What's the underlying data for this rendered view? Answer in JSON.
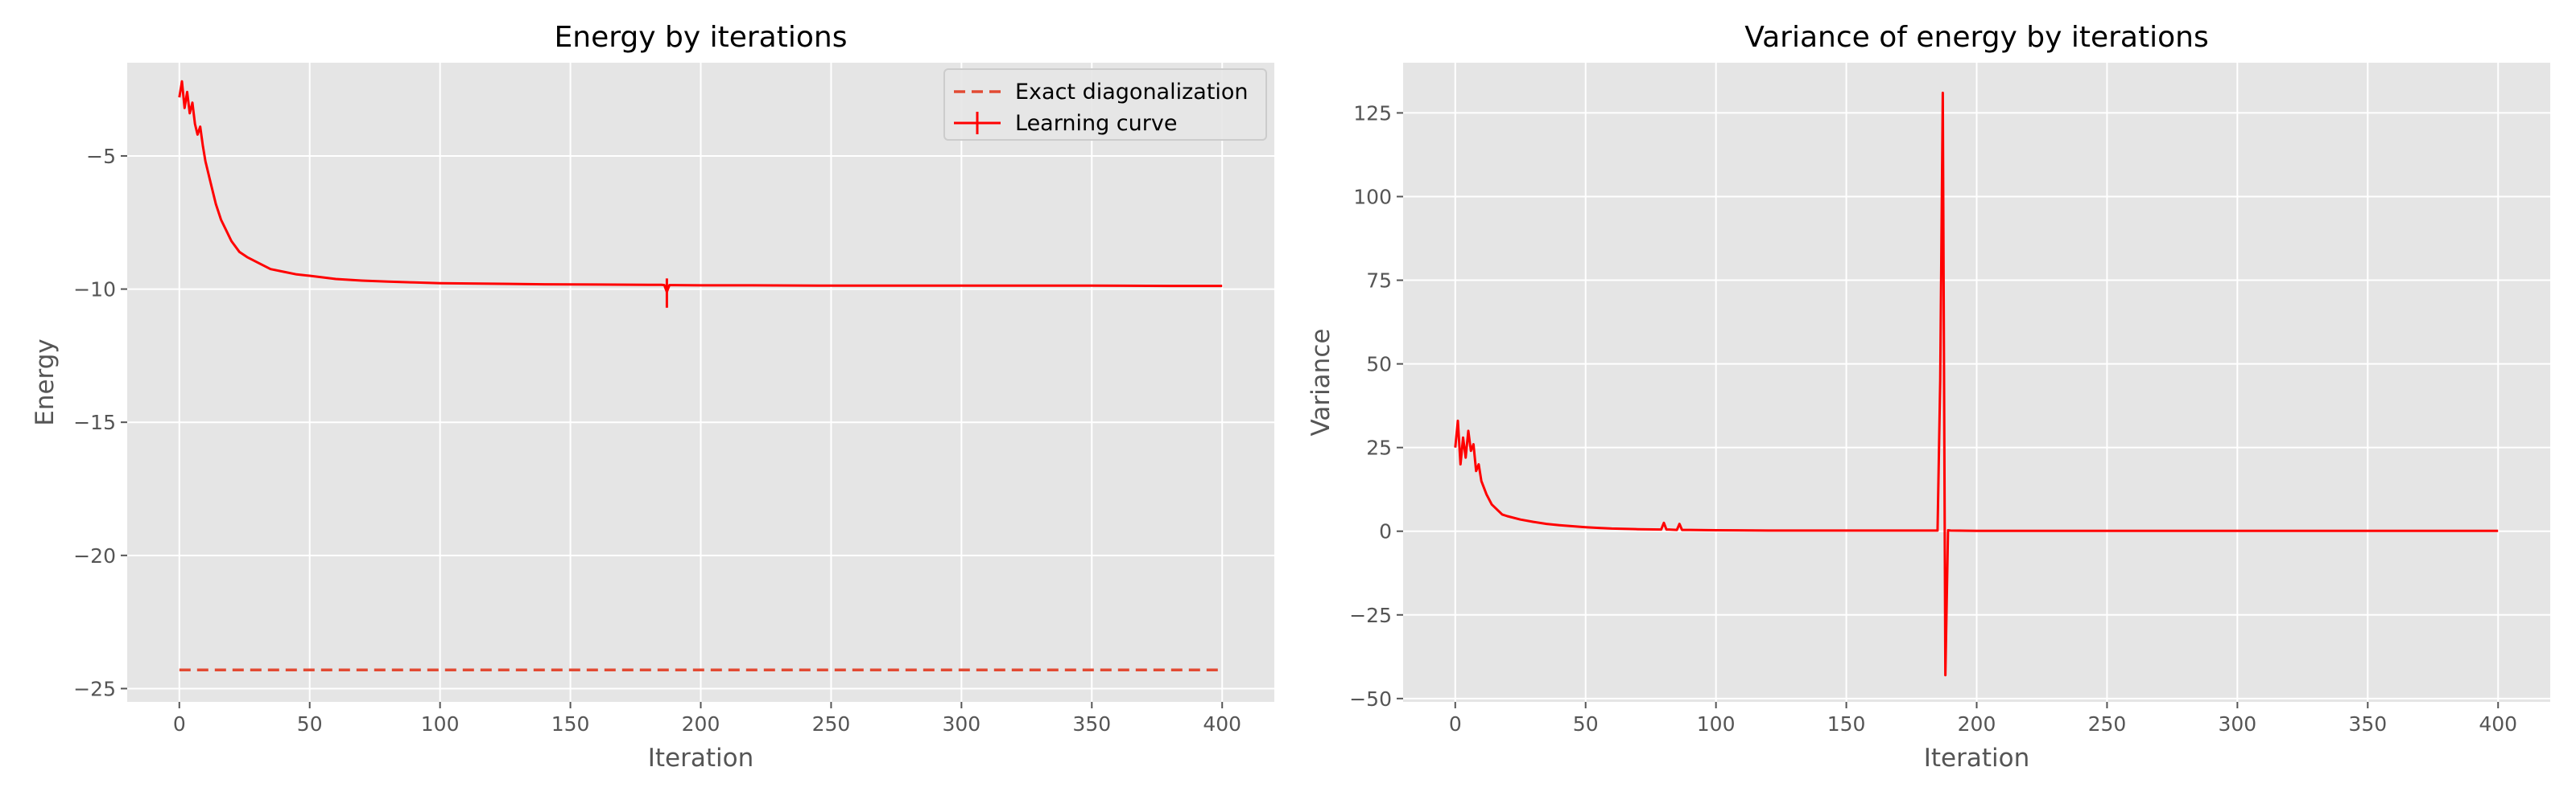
{
  "colors": {
    "axes_bg": "#E5E5E5",
    "grid": "#FFFFFF",
    "tick_text": "#555555",
    "label_text": "#555555",
    "title_text": "#000000",
    "line": "#FF0000",
    "dashed": "#E24A33"
  },
  "chart_data": [
    {
      "type": "line",
      "title": "Energy by iterations",
      "xlabel": "Iteration",
      "ylabel": "Energy",
      "xlim": [
        -20,
        420
      ],
      "ylim": [
        -25.5,
        -1.5
      ],
      "xticks": [
        0,
        50,
        100,
        150,
        200,
        250,
        300,
        350,
        400
      ],
      "yticks": [
        -25,
        -20,
        -15,
        -10,
        -5
      ],
      "xtick_labels": [
        "0",
        "50",
        "100",
        "150",
        "200",
        "250",
        "300",
        "350",
        "400"
      ],
      "ytick_labels": [
        "−25",
        "−20",
        "−15",
        "−10",
        "−5"
      ],
      "grid": true,
      "legend": {
        "position": "top-right",
        "entries": [
          "Exact diagonalization",
          "Learning curve"
        ]
      },
      "series": [
        {
          "name": "Exact diagonalization",
          "style": "dashed",
          "x": [
            0,
            400
          ],
          "y": [
            -24.3,
            -24.3
          ]
        },
        {
          "name": "Learning curve",
          "style": "errorbar",
          "x": [
            0,
            1,
            2,
            3,
            4,
            5,
            6,
            7,
            8,
            9,
            10,
            12,
            14,
            16,
            18,
            20,
            23,
            26,
            30,
            35,
            40,
            45,
            50,
            60,
            70,
            80,
            90,
            100,
            120,
            140,
            160,
            180,
            185,
            186,
            187,
            188,
            190,
            200,
            220,
            250,
            280,
            300,
            320,
            350,
            380,
            400
          ],
          "y": [
            -2.8,
            -2.2,
            -3.2,
            -2.6,
            -3.4,
            -3.0,
            -3.8,
            -4.2,
            -3.9,
            -4.6,
            -5.2,
            -6.0,
            -6.8,
            -7.4,
            -7.8,
            -8.2,
            -8.6,
            -8.8,
            -9.0,
            -9.25,
            -9.35,
            -9.45,
            -9.5,
            -9.62,
            -9.68,
            -9.72,
            -9.75,
            -9.78,
            -9.8,
            -9.82,
            -9.83,
            -9.84,
            -9.84,
            -9.85,
            -10.1,
            -9.85,
            -9.85,
            -9.86,
            -9.86,
            -9.87,
            -9.87,
            -9.87,
            -9.87,
            -9.87,
            -9.88,
            -9.88
          ],
          "errorbars": [
            {
              "x": 187,
              "low": -10.7,
              "high": -9.6
            }
          ]
        }
      ]
    },
    {
      "type": "line",
      "title": "Variance of energy by iterations",
      "xlabel": "Iteration",
      "ylabel": "Variance",
      "xlim": [
        -20,
        420
      ],
      "ylim": [
        -51,
        140
      ],
      "xticks": [
        0,
        50,
        100,
        150,
        200,
        250,
        300,
        350,
        400
      ],
      "yticks": [
        -50,
        -25,
        0,
        25,
        50,
        75,
        100,
        125
      ],
      "xtick_labels": [
        "0",
        "50",
        "100",
        "150",
        "200",
        "250",
        "300",
        "350",
        "400"
      ],
      "ytick_labels": [
        "−50",
        "−25",
        "0",
        "25",
        "50",
        "75",
        "100",
        "125"
      ],
      "grid": true,
      "series": [
        {
          "style": "solid",
          "x": [
            0,
            1,
            2,
            3,
            4,
            5,
            6,
            7,
            8,
            9,
            10,
            12,
            14,
            16,
            18,
            20,
            25,
            30,
            35,
            40,
            45,
            50,
            55,
            60,
            70,
            79,
            80,
            81,
            82,
            85,
            86,
            87,
            90,
            100,
            120,
            150,
            180,
            185,
            186,
            187,
            188,
            189,
            190,
            200,
            250,
            300,
            350,
            400
          ],
          "y": [
            25,
            33,
            20,
            28,
            22,
            30,
            24,
            26,
            18,
            20,
            15,
            11,
            8,
            6.5,
            5,
            4.5,
            3.5,
            2.8,
            2.2,
            1.8,
            1.5,
            1.2,
            1.0,
            0.8,
            0.6,
            0.5,
            2.5,
            0.5,
            0.5,
            0.4,
            2.2,
            0.4,
            0.4,
            0.3,
            0.2,
            0.2,
            0.2,
            0.2,
            45,
            131,
            -43,
            0.3,
            0.2,
            0.1,
            0.1,
            0.1,
            0.1,
            0.1
          ]
        }
      ]
    }
  ]
}
